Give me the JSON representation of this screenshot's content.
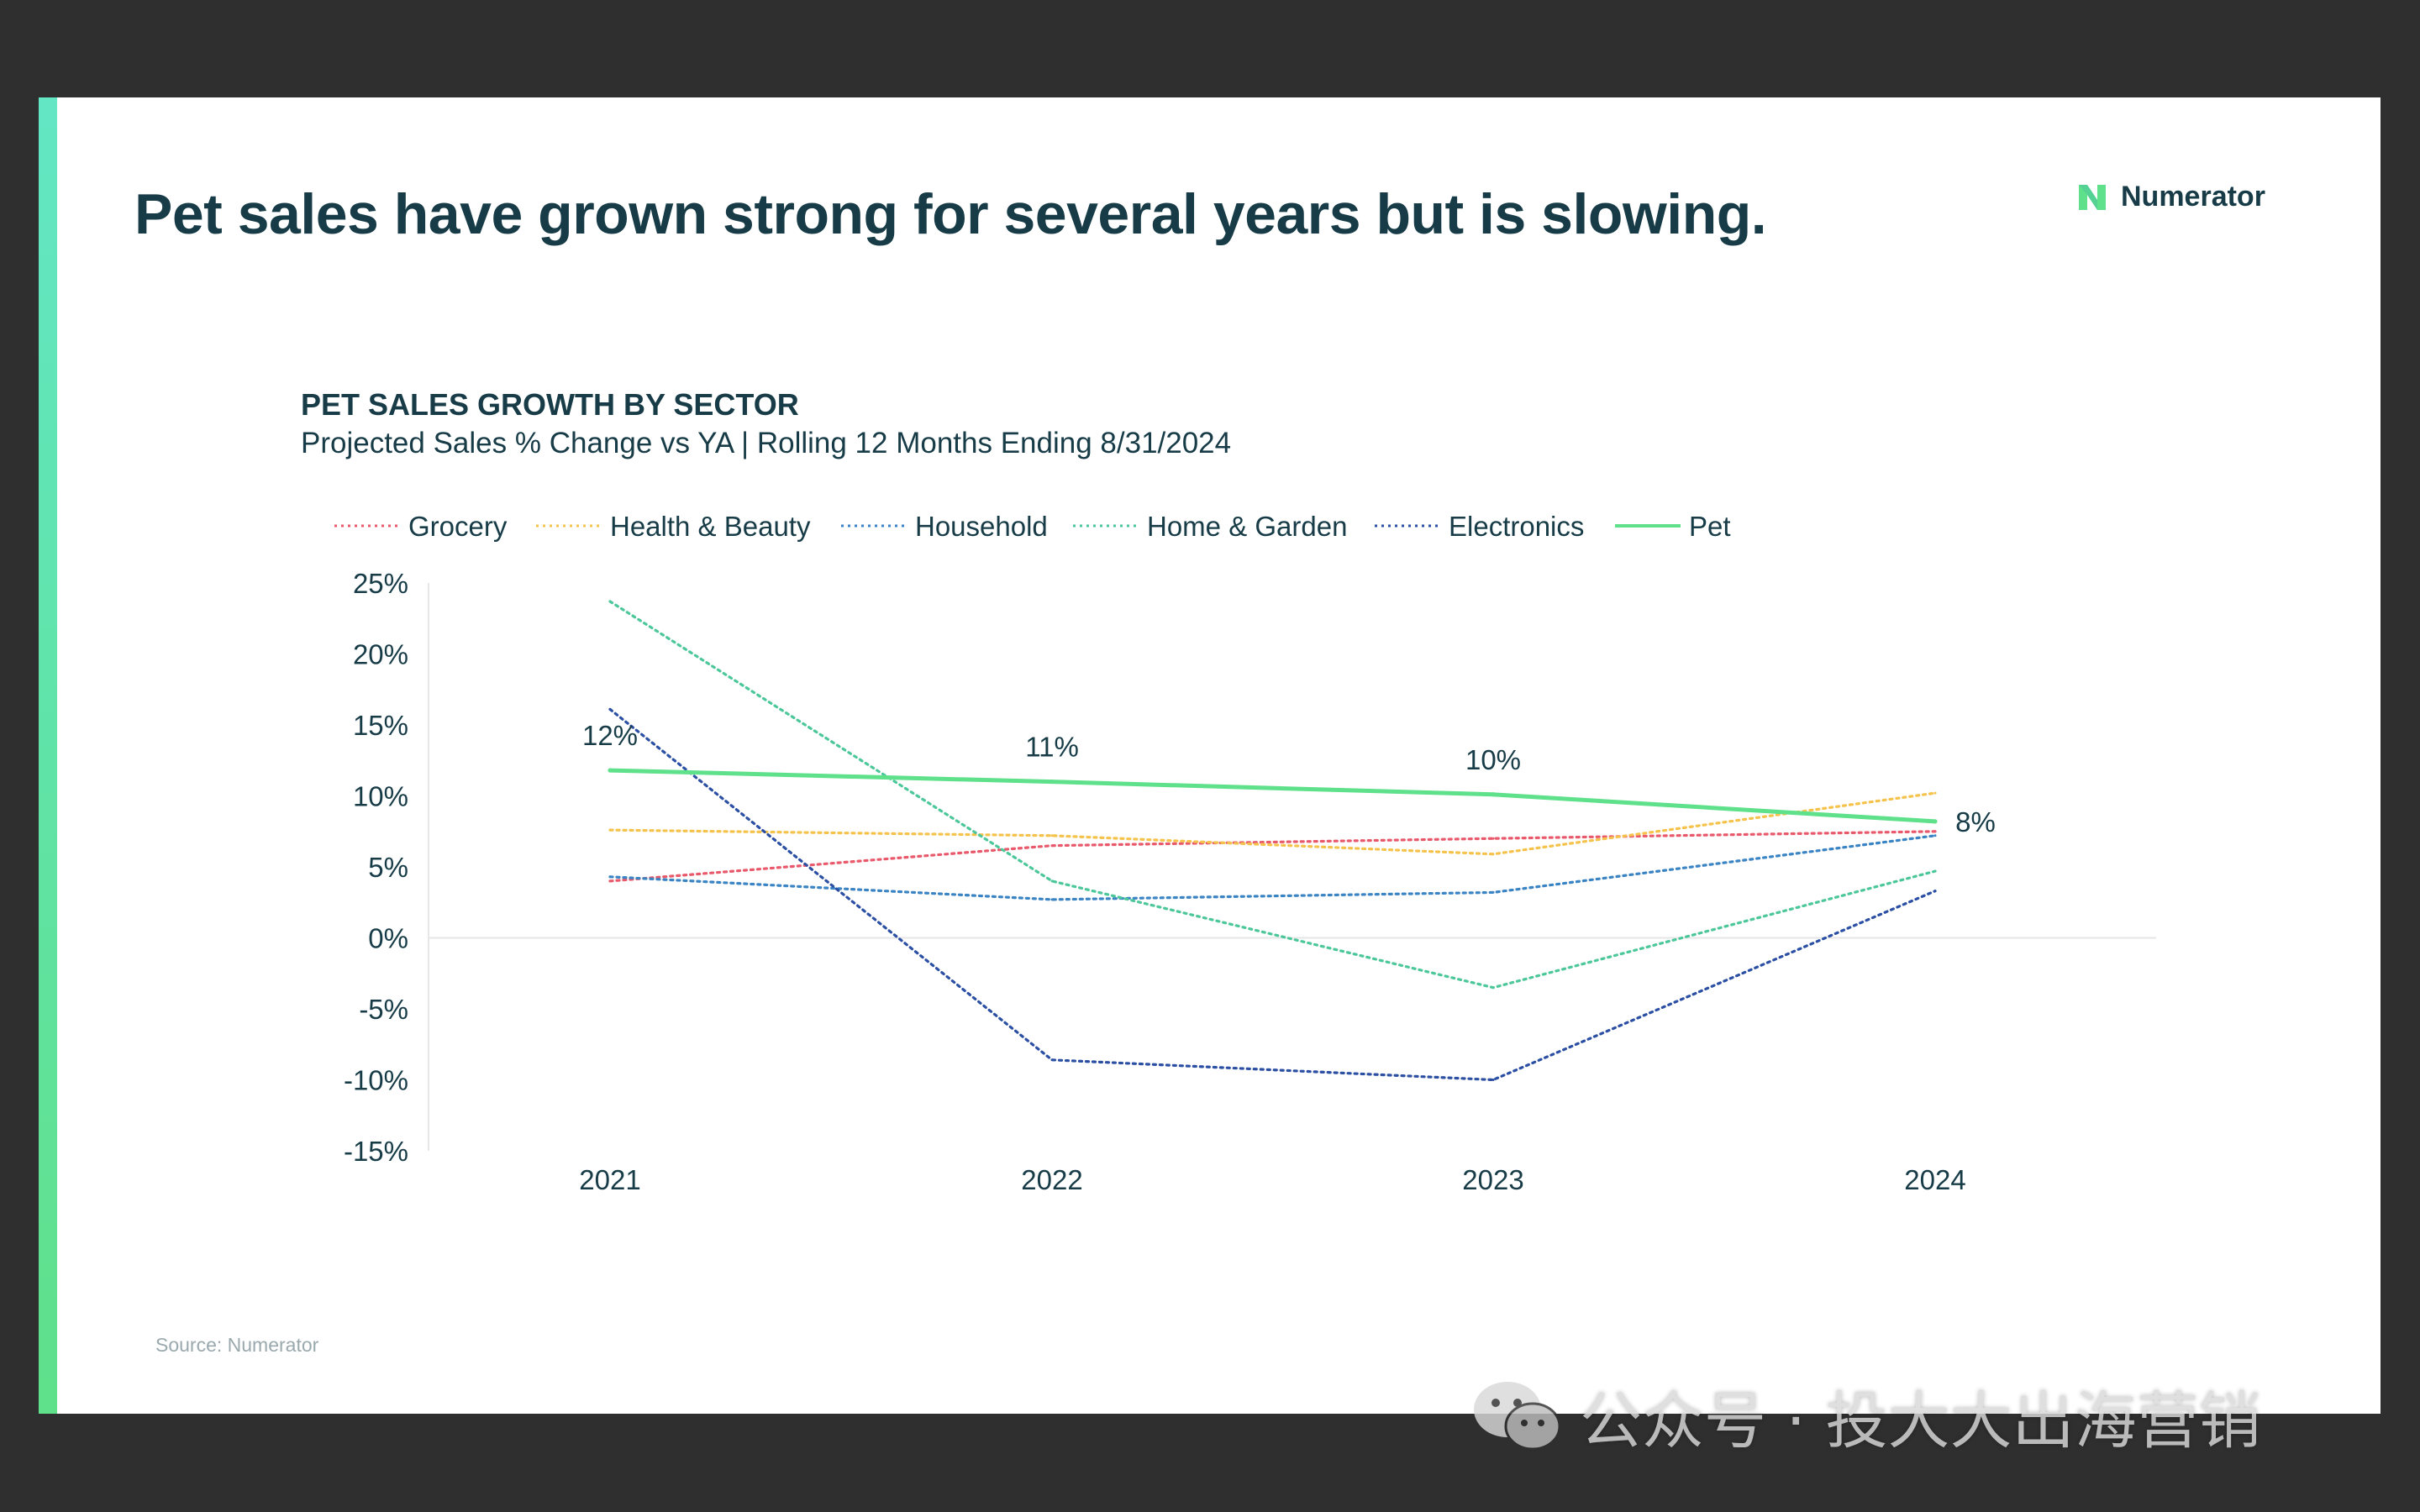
{
  "slide": {
    "title": "Pet sales have grown strong for several years but is slowing.",
    "logo_text": "Numerator",
    "source": "Source: Numerator",
    "accent_color": "#5fe08a"
  },
  "watermark": {
    "text": "公众号 · 投大大出海营销",
    "icon": "wechat-icon"
  },
  "chart_data": {
    "type": "line",
    "title": "PET SALES GROWTH BY SECTOR",
    "subtitle": "Projected Sales % Change vs YA | Rolling 12 Months Ending 8/31/2024",
    "xlabel": "",
    "ylabel": "",
    "x": [
      "2021",
      "2022",
      "2023",
      "2024"
    ],
    "ylim": [
      -15,
      25
    ],
    "yticks": [
      "25%",
      "20%",
      "15%",
      "10%",
      "5%",
      "0%",
      "-5%",
      "-10%",
      "-15%"
    ],
    "yticks_values": [
      25,
      20,
      15,
      10,
      5,
      0,
      -5,
      -10,
      -15
    ],
    "legend_position": "top",
    "series": [
      {
        "name": "Grocery",
        "values": [
          4.0,
          6.5,
          7.0,
          7.5
        ],
        "color": "#e8596b",
        "style": "dotted"
      },
      {
        "name": "Health & Beauty",
        "values": [
          7.6,
          7.2,
          5.9,
          10.2
        ],
        "color": "#f5c34c",
        "style": "dotted"
      },
      {
        "name": "Household",
        "values": [
          4.3,
          2.7,
          3.2,
          7.2
        ],
        "color": "#3b84c4",
        "style": "dotted"
      },
      {
        "name": "Home & Garden",
        "values": [
          23.7,
          4.0,
          -3.5,
          4.7
        ],
        "color": "#4cc79a",
        "style": "dotted"
      },
      {
        "name": "Electronics",
        "values": [
          16.1,
          -8.6,
          -10.0,
          3.3
        ],
        "color": "#2b4fa3",
        "style": "dotted"
      },
      {
        "name": "Pet",
        "values": [
          11.8,
          11.0,
          10.1,
          8.2
        ],
        "color": "#5fe08a",
        "style": "solid",
        "data_labels": [
          "12%",
          "11%",
          "10%",
          "8%"
        ]
      }
    ]
  }
}
